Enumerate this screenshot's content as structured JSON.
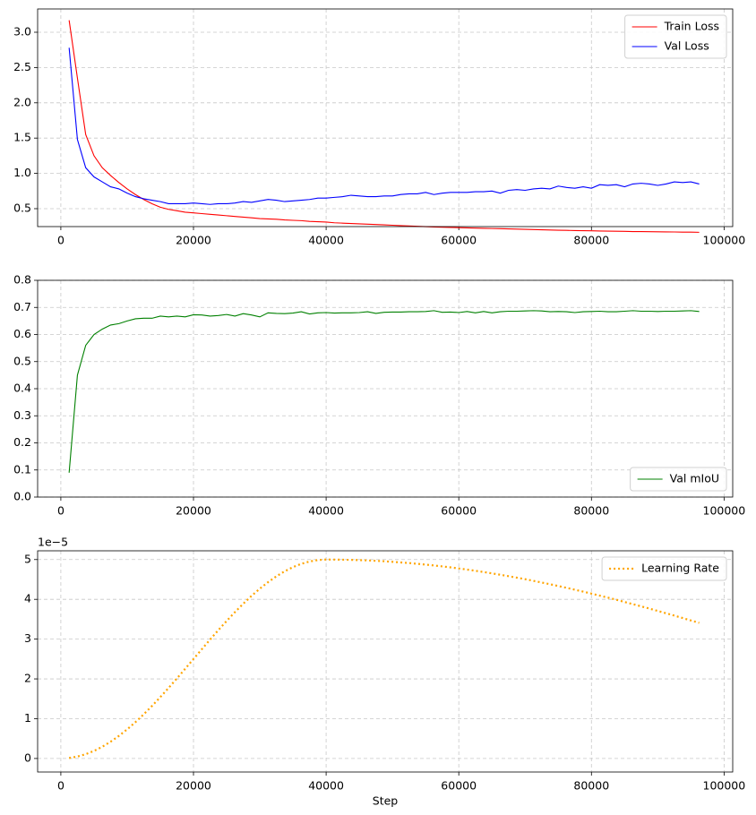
{
  "chart_data": [
    {
      "type": "line",
      "x": [
        1250,
        2500,
        3750,
        5000,
        6250,
        7500,
        8750,
        10000,
        11250,
        12500,
        13750,
        15000,
        16250,
        17500,
        18750,
        20000,
        21250,
        22500,
        23750,
        25000,
        26250,
        27500,
        28750,
        30000,
        31250,
        32500,
        33750,
        35000,
        36250,
        37500,
        38750,
        40000,
        41250,
        42500,
        43750,
        45000,
        46250,
        47500,
        48750,
        50000,
        51250,
        52500,
        53750,
        55000,
        56250,
        57500,
        58750,
        60000,
        61250,
        62500,
        63750,
        65000,
        66250,
        67500,
        68750,
        70000,
        71250,
        72500,
        73750,
        75000,
        76250,
        77500,
        78750,
        80000,
        81250,
        82500,
        83750,
        85000,
        86250,
        87500,
        88750,
        90000,
        91250,
        92500,
        93750,
        95000,
        96250
      ],
      "series": [
        {
          "name": "Train Loss",
          "color": "#ff0000",
          "values": [
            3.17,
            2.35,
            1.55,
            1.25,
            1.08,
            0.97,
            0.87,
            0.78,
            0.7,
            0.63,
            0.57,
            0.52,
            0.49,
            0.47,
            0.45,
            0.44,
            0.43,
            0.42,
            0.41,
            0.4,
            0.39,
            0.38,
            0.37,
            0.36,
            0.355,
            0.35,
            0.34,
            0.335,
            0.33,
            0.32,
            0.315,
            0.31,
            0.3,
            0.295,
            0.29,
            0.285,
            0.28,
            0.275,
            0.27,
            0.265,
            0.26,
            0.255,
            0.25,
            0.245,
            0.24,
            0.237,
            0.234,
            0.231,
            0.228,
            0.225,
            0.222,
            0.219,
            0.216,
            0.213,
            0.21,
            0.207,
            0.204,
            0.201,
            0.198,
            0.195,
            0.193,
            0.19,
            0.188,
            0.186,
            0.184,
            0.182,
            0.18,
            0.178,
            0.176,
            0.175,
            0.174,
            0.172,
            0.171,
            0.17,
            0.168,
            0.167,
            0.165
          ]
        },
        {
          "name": "Val Loss",
          "color": "#0000ff",
          "values": [
            2.78,
            1.48,
            1.08,
            0.95,
            0.88,
            0.81,
            0.78,
            0.72,
            0.67,
            0.64,
            0.62,
            0.6,
            0.57,
            0.57,
            0.57,
            0.58,
            0.57,
            0.56,
            0.57,
            0.57,
            0.58,
            0.6,
            0.59,
            0.61,
            0.63,
            0.62,
            0.6,
            0.61,
            0.62,
            0.63,
            0.65,
            0.65,
            0.66,
            0.67,
            0.69,
            0.68,
            0.67,
            0.67,
            0.68,
            0.68,
            0.7,
            0.71,
            0.71,
            0.73,
            0.7,
            0.72,
            0.73,
            0.73,
            0.73,
            0.74,
            0.74,
            0.75,
            0.72,
            0.76,
            0.77,
            0.76,
            0.78,
            0.79,
            0.78,
            0.82,
            0.8,
            0.79,
            0.81,
            0.79,
            0.84,
            0.83,
            0.84,
            0.81,
            0.85,
            0.86,
            0.85,
            0.83,
            0.85,
            0.88,
            0.87,
            0.88,
            0.85
          ]
        }
      ],
      "xlim": [
        -3500,
        101300
      ],
      "ylim": [
        0.246,
        3.33
      ],
      "xticks": [
        0,
        20000,
        40000,
        60000,
        80000,
        100000
      ],
      "yticks": [
        0.5,
        {
          "value": 1,
          "label": "1.0"
        },
        1.5,
        {
          "value": 2,
          "label": "2.0"
        },
        2.5,
        {
          "value": 3,
          "label": "3.0"
        }
      ],
      "grid": true,
      "legend": "upper right"
    },
    {
      "type": "line",
      "x": [
        1250,
        2500,
        3750,
        5000,
        6250,
        7500,
        8750,
        10000,
        11250,
        12500,
        13750,
        15000,
        16250,
        17500,
        18750,
        20000,
        21250,
        22500,
        23750,
        25000,
        26250,
        27500,
        28750,
        30000,
        31250,
        32500,
        33750,
        35000,
        36250,
        37500,
        38750,
        40000,
        41250,
        42500,
        43750,
        45000,
        46250,
        47500,
        48750,
        50000,
        51250,
        52500,
        53750,
        55000,
        56250,
        57500,
        58750,
        60000,
        61250,
        62500,
        63750,
        65000,
        66250,
        67500,
        68750,
        70000,
        71250,
        72500,
        73750,
        75000,
        76250,
        77500,
        78750,
        80000,
        81250,
        82500,
        83750,
        85000,
        86250,
        87500,
        88750,
        90000,
        91250,
        92500,
        93750,
        95000,
        96250
      ],
      "series": [
        {
          "name": "Val mIoU",
          "color": "#008000",
          "values": [
            0.09,
            0.45,
            0.56,
            0.6,
            0.62,
            0.635,
            0.64,
            0.65,
            0.658,
            0.66,
            0.66,
            0.668,
            0.665,
            0.668,
            0.665,
            0.673,
            0.672,
            0.668,
            0.67,
            0.674,
            0.668,
            0.677,
            0.672,
            0.665,
            0.68,
            0.678,
            0.677,
            0.679,
            0.684,
            0.676,
            0.68,
            0.681,
            0.679,
            0.68,
            0.68,
            0.681,
            0.684,
            0.678,
            0.682,
            0.683,
            0.683,
            0.684,
            0.684,
            0.685,
            0.688,
            0.682,
            0.683,
            0.681,
            0.685,
            0.68,
            0.685,
            0.68,
            0.684,
            0.686,
            0.686,
            0.687,
            0.688,
            0.687,
            0.684,
            0.685,
            0.684,
            0.681,
            0.684,
            0.685,
            0.686,
            0.684,
            0.684,
            0.686,
            0.688,
            0.686,
            0.686,
            0.685,
            0.686,
            0.686,
            0.687,
            0.688,
            0.685
          ]
        }
      ],
      "xlim": [
        -3500,
        101300
      ],
      "ylim": [
        0,
        0.8
      ],
      "xticks": [
        0,
        20000,
        40000,
        60000,
        80000,
        100000
      ],
      "yticks": [
        {
          "value": 0,
          "label": "0.0"
        },
        0.1,
        0.2,
        0.3,
        0.4,
        0.5,
        0.6,
        0.7,
        0.8
      ],
      "grid": true,
      "legend": "lower right"
    },
    {
      "type": "line",
      "x": [
        1250,
        2500,
        3750,
        5000,
        6250,
        7500,
        8750,
        10000,
        11250,
        12500,
        13750,
        15000,
        16250,
        17500,
        18750,
        20000,
        21250,
        22500,
        23750,
        25000,
        26250,
        27500,
        28750,
        30000,
        31250,
        32500,
        33750,
        35000,
        36250,
        37500,
        38750,
        40000,
        41250,
        42500,
        43750,
        45000,
        46250,
        47500,
        48750,
        50000,
        51250,
        52500,
        53750,
        55000,
        56250,
        57500,
        58750,
        60000,
        61250,
        62500,
        63750,
        65000,
        66250,
        67500,
        68750,
        70000,
        71250,
        72500,
        73750,
        75000,
        76250,
        77500,
        78750,
        80000,
        81250,
        82500,
        83750,
        85000,
        86250,
        87500,
        88750,
        90000,
        91250,
        92500,
        93750,
        95000,
        96250
      ],
      "series": [
        {
          "name": "Learning Rate",
          "color": "#ffa500",
          "linestyle": "dotted",
          "values": [
            0.012,
            0.048,
            0.108,
            0.19,
            0.295,
            0.421,
            0.567,
            0.732,
            0.914,
            1.111,
            1.321,
            1.543,
            1.774,
            2.012,
            2.255,
            2.5,
            2.745,
            2.988,
            3.226,
            3.457,
            3.679,
            3.889,
            4.086,
            4.268,
            4.433,
            4.579,
            4.705,
            4.81,
            4.892,
            4.952,
            4.988,
            5.0,
            4.999,
            4.996,
            4.992,
            4.986,
            4.978,
            4.968,
            4.957,
            4.943,
            4.928,
            4.912,
            4.893,
            4.873,
            4.851,
            4.828,
            4.803,
            4.776,
            4.748,
            4.718,
            4.686,
            4.653,
            4.618,
            4.582,
            4.545,
            4.506,
            4.465,
            4.423,
            4.38,
            4.335,
            4.289,
            4.242,
            4.194,
            4.144,
            4.093,
            4.042,
            3.989,
            3.934,
            3.88,
            3.823,
            3.767,
            3.709,
            3.65,
            3.591,
            3.53,
            3.469,
            3.408
          ]
        }
      ],
      "xlim": [
        -3500,
        101300
      ],
      "ylim": [
        -0.34,
        5.22
      ],
      "xticks": [
        0,
        20000,
        40000,
        60000,
        80000,
        100000
      ],
      "yticks": [
        0,
        1,
        2,
        3,
        4,
        5
      ],
      "offset_text": "1e−5",
      "xlabel": "Step",
      "grid": true,
      "legend": "upper right"
    }
  ]
}
